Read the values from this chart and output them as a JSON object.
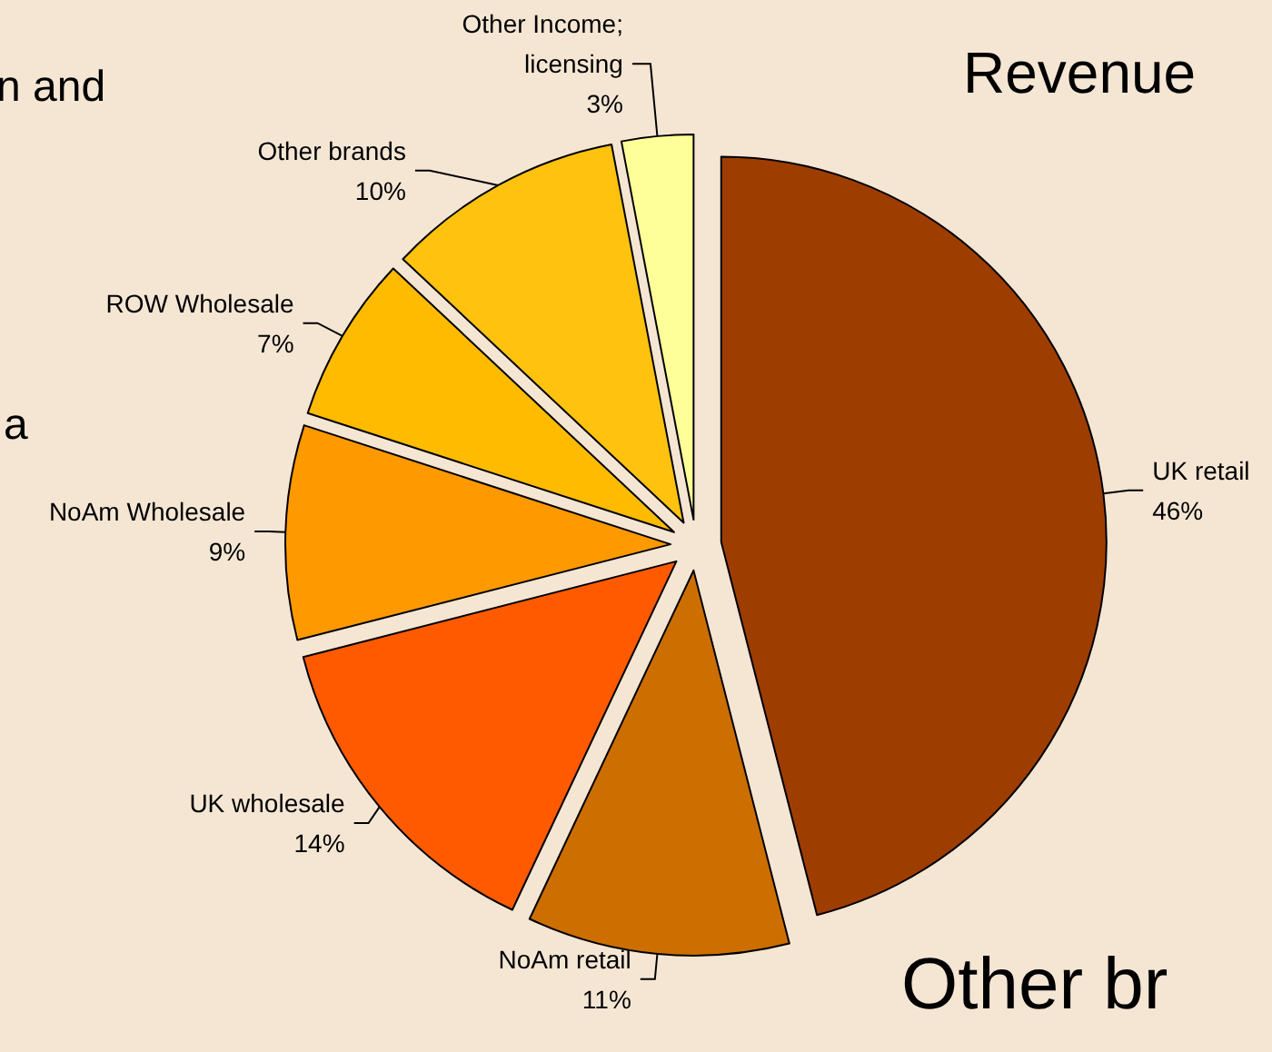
{
  "chart_data": {
    "type": "pie",
    "categories": [
      "UK retail",
      "NoAm retail",
      "UK wholesale",
      "NoAm Wholesale",
      "ROW Wholesale",
      "Other brands",
      "Other Income; licensing"
    ],
    "values": [
      46,
      11,
      14,
      9,
      7,
      10,
      3
    ],
    "colors": [
      "#9e3d00",
      "#cc6e00",
      "#ff5a00",
      "#ff9900",
      "#ffbb00",
      "#ffc20e",
      "#ffff99"
    ],
    "value_labels": [
      "46%",
      "11%",
      "14%",
      "9%",
      "7%",
      "10%",
      "3%"
    ],
    "annotations": [
      "n and",
      "a",
      "Revenue",
      "Other br"
    ]
  }
}
